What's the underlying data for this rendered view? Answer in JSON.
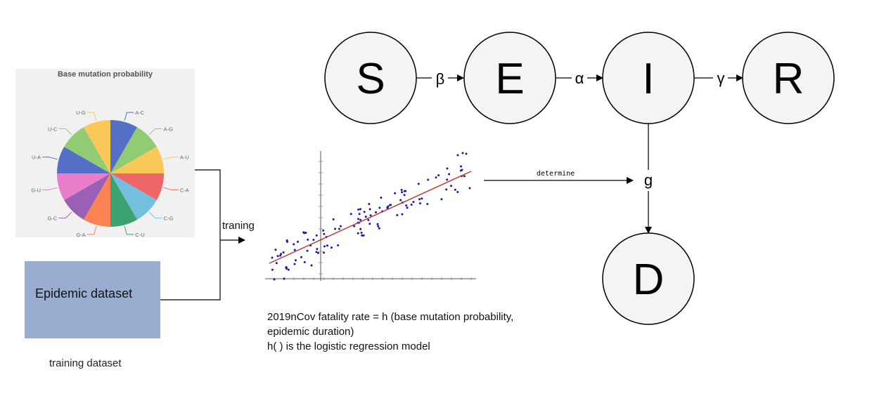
{
  "pie_chart": {
    "title": "Base mutation probability",
    "slices": [
      {
        "label": "A-C",
        "color": "#5470c6"
      },
      {
        "label": "A-G",
        "color": "#91cc75"
      },
      {
        "label": "A-U",
        "color": "#fac858"
      },
      {
        "label": "C-A",
        "color": "#ee6666"
      },
      {
        "label": "C-G",
        "color": "#73c0de"
      },
      {
        "label": "C-U",
        "color": "#3ba272"
      },
      {
        "label": "G-A",
        "color": "#fc8452"
      },
      {
        "label": "G-C",
        "color": "#9a60b4"
      },
      {
        "label": "G-U",
        "color": "#ea7ccc"
      },
      {
        "label": "U-A",
        "color": "#5470c6"
      },
      {
        "label": "U-C",
        "color": "#91cc75"
      },
      {
        "label": "U-G",
        "color": "#fac858"
      }
    ]
  },
  "dataset": {
    "label": "Epidemic dataset",
    "color": "#98add0"
  },
  "caption": "training dataset",
  "training_label": "traning",
  "determine_label": "determine",
  "formula": {
    "line1": "2019nCov fatality rate = h (base mutation probability,",
    "line2": "epidemic duration)",
    "line3": "h( ) is the logistic regression model"
  },
  "seir": {
    "nodes": {
      "S": "S",
      "E": "E",
      "I": "I",
      "R": "R",
      "D": "D"
    },
    "rates": {
      "beta": "β",
      "alpha": "α",
      "gamma": "γ"
    },
    "g": "g"
  },
  "scatter": {
    "point_color": "#1a1aa0",
    "line_color": "#c0392b"
  }
}
